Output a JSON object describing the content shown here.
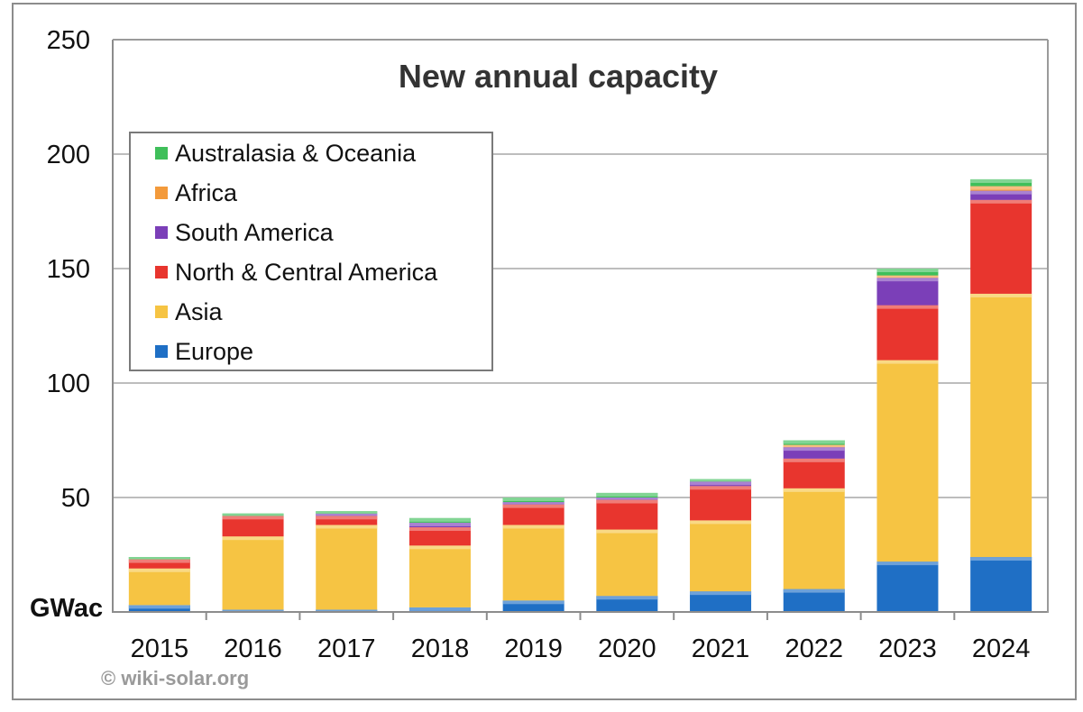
{
  "chart_data": {
    "type": "bar",
    "stacked": true,
    "title": "New annual capacity",
    "unit_label": "GWac",
    "credit": "© wiki-solar.org",
    "categories": [
      "2015",
      "2016",
      "2017",
      "2018",
      "2019",
      "2020",
      "2021",
      "2022",
      "2023",
      "2024"
    ],
    "ylim": [
      0,
      250
    ],
    "yticks": [
      50,
      100,
      150,
      200,
      250
    ],
    "grid": true,
    "legend_position": "top-left",
    "series": [
      {
        "name": "Europe",
        "color": "#1f6fc5",
        "values": [
          3,
          1,
          1,
          2,
          5,
          7,
          9,
          10,
          22,
          24
        ]
      },
      {
        "name": "Asia",
        "color": "#f6c443",
        "values": [
          16,
          32,
          37,
          27,
          33,
          29,
          31,
          44,
          88,
          115
        ]
      },
      {
        "name": "North & Central America",
        "color": "#e8352e",
        "values": [
          4,
          9,
          4,
          8,
          9,
          13,
          15,
          13,
          24,
          41
        ]
      },
      {
        "name": "South America",
        "color": "#7b3fb8",
        "values": [
          0,
          0,
          1,
          2,
          1,
          1,
          2,
          5,
          12,
          4
        ]
      },
      {
        "name": "Africa",
        "color": "#f39a3b",
        "values": [
          0,
          0,
          0,
          0,
          0,
          0,
          0,
          1,
          1,
          2
        ]
      },
      {
        "name": "Australasia & Oceania",
        "color": "#3fbf5a",
        "values": [
          1,
          1,
          1,
          2,
          2,
          2,
          1,
          2,
          3,
          3
        ]
      }
    ]
  }
}
